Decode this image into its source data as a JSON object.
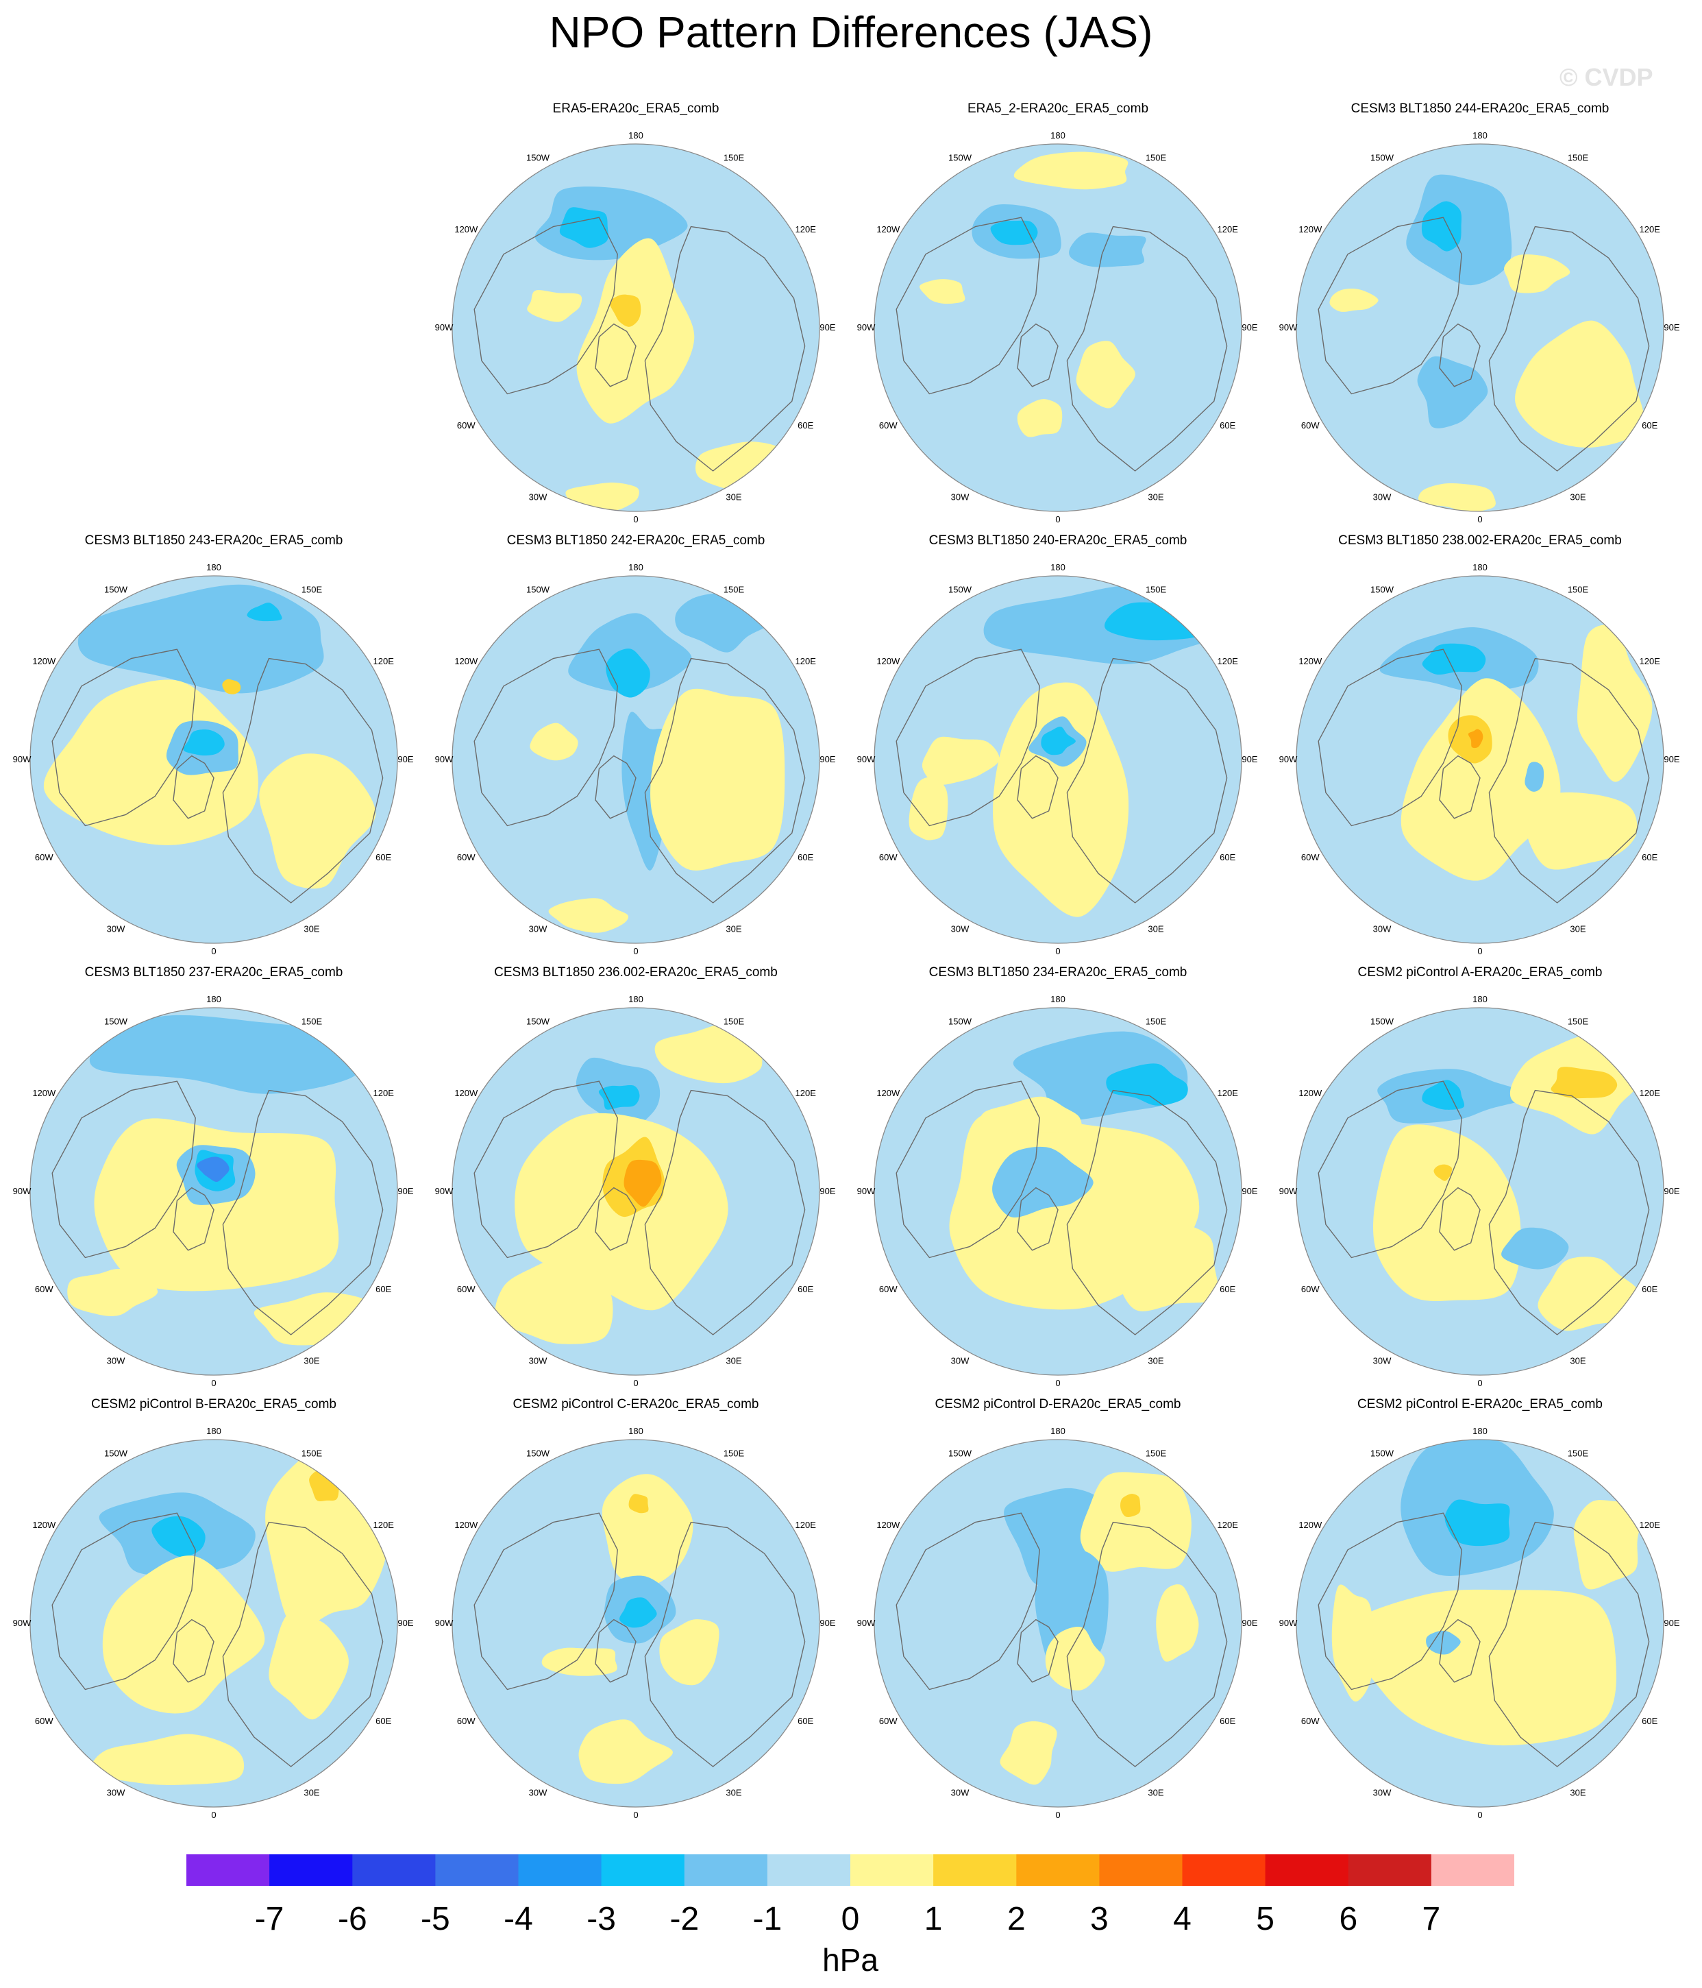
{
  "title": "NPO Pattern Differences (JAS)",
  "watermark": "© CVDP",
  "lon_labels": [
    "180",
    "150E",
    "120E",
    "90E",
    "60E",
    "30E",
    "0",
    "30W",
    "60W",
    "90W",
    "120W",
    "150W"
  ],
  "palette": {
    "ocean": "#b3ddf2",
    "neg1": "#74c6f0",
    "neg2": "#17c4f5",
    "neg3": "#3a8af0",
    "pos1": "#fff795",
    "pos2": "#fdd532",
    "pos3": "#fda70f",
    "coast": "#6b6b6b",
    "border": "#8a8a8a"
  },
  "panels": [
    {
      "title": "ERA5-ERA20c_ERA5_comb",
      "row": 0,
      "col": 1
    },
    {
      "title": "ERA5_2-ERA20c_ERA5_comb",
      "row": 0,
      "col": 2
    },
    {
      "title": "CESM3 BLT1850 244-ERA20c_ERA5_comb",
      "row": 0,
      "col": 3
    },
    {
      "title": "CESM3 BLT1850 243-ERA20c_ERA5_comb",
      "row": 1,
      "col": 0
    },
    {
      "title": "CESM3 BLT1850 242-ERA20c_ERA5_comb",
      "row": 1,
      "col": 1
    },
    {
      "title": "CESM3 BLT1850 240-ERA20c_ERA5_comb",
      "row": 1,
      "col": 2
    },
    {
      "title": "CESM3 BLT1850 238.002-ERA20c_ERA5_comb",
      "row": 1,
      "col": 3
    },
    {
      "title": "CESM3 BLT1850 237-ERA20c_ERA5_comb",
      "row": 2,
      "col": 0
    },
    {
      "title": "CESM3 BLT1850 236.002-ERA20c_ERA5_comb",
      "row": 2,
      "col": 1
    },
    {
      "title": "CESM3 BLT1850 234-ERA20c_ERA5_comb",
      "row": 2,
      "col": 2
    },
    {
      "title": "CESM2 piControl A-ERA20c_ERA5_comb",
      "row": 2,
      "col": 3
    },
    {
      "title": "CESM2 piControl B-ERA20c_ERA5_comb",
      "row": 3,
      "col": 0
    },
    {
      "title": "CESM2 piControl C-ERA20c_ERA5_comb",
      "row": 3,
      "col": 1
    },
    {
      "title": "CESM2 piControl D-ERA20c_ERA5_comb",
      "row": 3,
      "col": 2
    },
    {
      "title": "CESM2 piControl E-ERA20c_ERA5_comb",
      "row": 3,
      "col": 3
    }
  ],
  "colorbar": {
    "unit": "hPa",
    "ticks": [
      "-7",
      "-6",
      "-5",
      "-4",
      "-3",
      "-2",
      "-1",
      "0",
      "1",
      "2",
      "3",
      "4",
      "5",
      "6",
      "7"
    ],
    "colors": [
      "#8227ee",
      "#1610f8",
      "#2b46e8",
      "#3a72ea",
      "#1e97f4",
      "#0dc2f7",
      "#72c3f0",
      "#b3ddf2",
      "#fff795",
      "#fdd532",
      "#fda70f",
      "#fd7a0a",
      "#fc3b09",
      "#e30e0e",
      "#cd1f1f",
      "#feb5b5"
    ]
  }
}
